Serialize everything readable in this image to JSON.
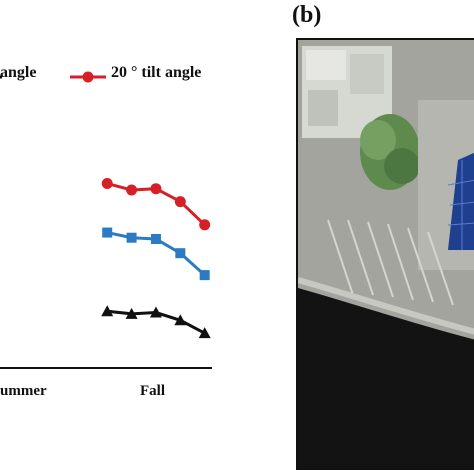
{
  "chart_data": {
    "type": "line",
    "x_category_labels": [
      "ummer",
      "Fall"
    ],
    "legend": [
      {
        "label": "angle",
        "color": "#1a1a1a"
      },
      {
        "label": "20 ° tilt angle",
        "color": "#d62028"
      }
    ],
    "series": [
      {
        "name": "20 ° tilt angle",
        "color": "#d62028",
        "marker": "circle",
        "values": [
          7.15,
          6.9,
          6.95,
          6.45,
          5.55
        ]
      },
      {
        "name": "",
        "color": "#2a7bc4",
        "marker": "square",
        "values": [
          5.25,
          5.05,
          5.0,
          4.45,
          3.6
        ]
      },
      {
        "name": "",
        "color": "#111111",
        "marker": "triangle",
        "values": [
          2.2,
          2.1,
          2.15,
          1.85,
          1.35
        ]
      }
    ],
    "x_positions": [
      3.0,
      4.0,
      5.0,
      6.0,
      7.0
    ],
    "x_range": [
      -1.4,
      7.3
    ],
    "y_range": [
      0,
      10
    ]
  },
  "panel_b": {
    "label": "(b)"
  }
}
